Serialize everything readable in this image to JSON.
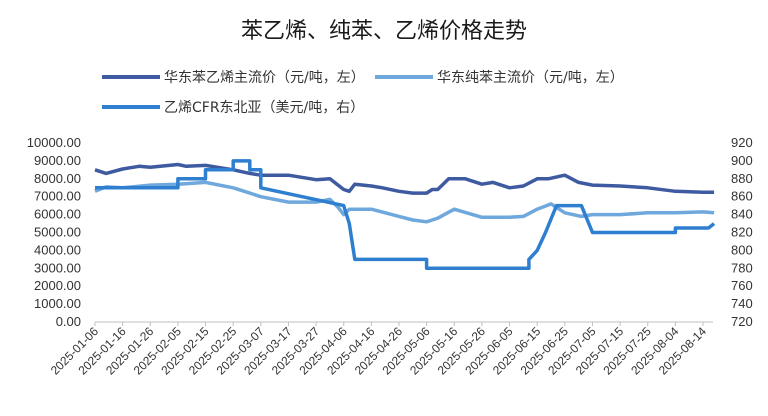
{
  "chart_data": {
    "type": "line",
    "title": "苯乙烯、纯苯、乙烯价格走势",
    "xlabel": "",
    "ylabel_left": "",
    "ylabel_right": "",
    "ylim_left": [
      0,
      10000
    ],
    "ylim_right": [
      720,
      920
    ],
    "y_left_ticks": [
      "0.00",
      "1000.00",
      "2000.00",
      "3000.00",
      "4000.00",
      "5000.00",
      "6000.00",
      "7000.00",
      "8000.00",
      "9000.00",
      "10000.00"
    ],
    "y_right_ticks": [
      "720",
      "740",
      "760",
      "780",
      "800",
      "820",
      "840",
      "860",
      "880",
      "900",
      "920"
    ],
    "x_ticks": [
      "2025-01-06",
      "2025-01-16",
      "2025-01-26",
      "2025-02-05",
      "2025-02-15",
      "2025-02-25",
      "2025-03-07",
      "2025-03-17",
      "2025-03-27",
      "2025-04-06",
      "2025-04-16",
      "2025-04-26",
      "2025-05-06",
      "2025-05-16",
      "2025-05-26",
      "2025-06-05",
      "2025-06-15",
      "2025-06-25",
      "2025-07-05",
      "2025-07-15",
      "2025-07-25",
      "2025-08-04",
      "2025-08-14"
    ],
    "legend_position": "top",
    "grid": false,
    "series": [
      {
        "name": "华东苯乙烯主流价（元/吨，左）",
        "axis": "left",
        "color": "#3e5aa0",
        "x": [
          "2025-01-06",
          "2025-01-10",
          "2025-01-16",
          "2025-01-22",
          "2025-01-26",
          "2025-02-05",
          "2025-02-08",
          "2025-02-15",
          "2025-02-25",
          "2025-03-03",
          "2025-03-07",
          "2025-03-17",
          "2025-03-27",
          "2025-04-01",
          "2025-04-06",
          "2025-04-08",
          "2025-04-10",
          "2025-04-16",
          "2025-04-20",
          "2025-04-26",
          "2025-05-01",
          "2025-05-06",
          "2025-05-08",
          "2025-05-10",
          "2025-05-14",
          "2025-05-20",
          "2025-05-26",
          "2025-05-30",
          "2025-06-05",
          "2025-06-10",
          "2025-06-15",
          "2025-06-19",
          "2025-06-25",
          "2025-06-30",
          "2025-07-05",
          "2025-07-15",
          "2025-07-25",
          "2025-08-04",
          "2025-08-14",
          "2025-08-18"
        ],
        "values": [
          8500,
          8300,
          8550,
          8700,
          8650,
          8800,
          8700,
          8750,
          8500,
          8300,
          8200,
          8200,
          7950,
          8000,
          7400,
          7300,
          7700,
          7600,
          7500,
          7300,
          7200,
          7200,
          7400,
          7400,
          8000,
          8000,
          7700,
          7800,
          7500,
          7600,
          8000,
          8000,
          8200,
          7800,
          7650,
          7600,
          7500,
          7300,
          7250,
          7250
        ]
      },
      {
        "name": "华东纯苯主流价（元/吨，左）",
        "axis": "left",
        "color": "#6fa8dc",
        "x": [
          "2025-01-06",
          "2025-01-10",
          "2025-01-16",
          "2025-01-26",
          "2025-02-05",
          "2025-02-15",
          "2025-02-25",
          "2025-03-03",
          "2025-03-07",
          "2025-03-17",
          "2025-03-27",
          "2025-04-01",
          "2025-04-04",
          "2025-04-06",
          "2025-04-08",
          "2025-04-10",
          "2025-04-16",
          "2025-04-26",
          "2025-05-01",
          "2025-05-06",
          "2025-05-08",
          "2025-05-10",
          "2025-05-16",
          "2025-05-26",
          "2025-06-05",
          "2025-06-10",
          "2025-06-15",
          "2025-06-20",
          "2025-06-25",
          "2025-07-01",
          "2025-07-05",
          "2025-07-15",
          "2025-07-25",
          "2025-08-04",
          "2025-08-14",
          "2025-08-18"
        ],
        "values": [
          7300,
          7550,
          7500,
          7650,
          7700,
          7800,
          7500,
          7200,
          7000,
          6700,
          6700,
          6850,
          6400,
          6000,
          6300,
          6300,
          6300,
          5900,
          5700,
          5600,
          5700,
          5800,
          6300,
          5850,
          5850,
          5900,
          6300,
          6600,
          6100,
          5900,
          6000,
          6000,
          6100,
          6100,
          6150,
          6100
        ]
      },
      {
        "name": "乙烯CFR东北亚（美元/吨，右）",
        "axis": "right",
        "color": "#2f7fd0",
        "x": [
          "2025-01-06",
          "2025-02-05",
          "2025-02-05",
          "2025-02-15",
          "2025-02-15",
          "2025-02-25",
          "2025-02-25",
          "2025-03-03",
          "2025-03-03",
          "2025-03-07",
          "2025-03-07",
          "2025-04-06",
          "2025-04-06",
          "2025-04-08",
          "2025-04-08",
          "2025-04-10",
          "2025-04-10",
          "2025-05-06",
          "2025-05-06",
          "2025-06-12",
          "2025-06-12",
          "2025-06-15",
          "2025-06-15",
          "2025-06-18",
          "2025-06-18",
          "2025-06-22",
          "2025-06-22",
          "2025-07-01",
          "2025-07-01",
          "2025-07-05",
          "2025-07-05",
          "2025-08-04",
          "2025-08-04",
          "2025-08-16",
          "2025-08-18"
        ],
        "values": [
          870,
          870,
          880,
          880,
          890,
          890,
          900,
          900,
          890,
          890,
          870,
          850,
          850,
          830,
          830,
          790,
          790,
          790,
          780,
          780,
          790,
          800,
          800,
          820,
          820,
          850,
          850,
          850,
          850,
          820,
          820,
          820,
          825,
          825,
          830
        ]
      }
    ]
  }
}
